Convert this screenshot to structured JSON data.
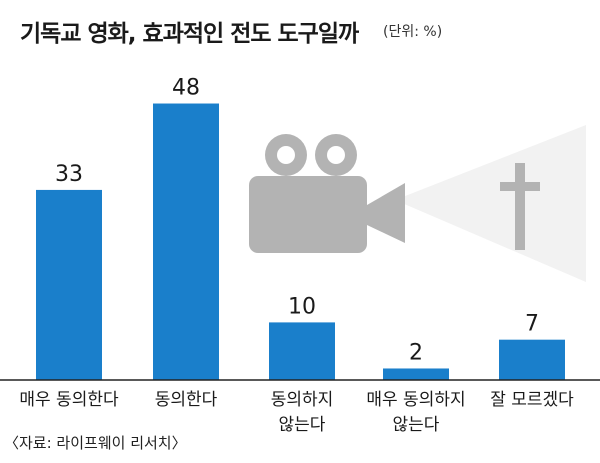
{
  "title": "기독교 영화, 효과적인 전도 도구일까",
  "unit": "(단위: %)",
  "source": "〈자료: 라이프웨이 리서치〉",
  "colors": {
    "bar": "#1a7fcb",
    "icon": "#b3b3b3",
    "beam": "#f2f2f2"
  },
  "icons": [
    "film-camera-icon",
    "cross-icon"
  ],
  "chart_data": {
    "type": "bar",
    "title": "기독교 영화, 효과적인 전도 도구일까",
    "unit": "(단위: %)",
    "categories": [
      "매우 동의한다",
      "동의한다",
      "동의하지 않는다",
      "매우 동의하지 않는다",
      "잘 모르겠다"
    ],
    "category_lines": [
      [
        "매우 동의한다"
      ],
      [
        "동의한다"
      ],
      [
        "동의하지",
        "않는다"
      ],
      [
        "매우 동의하지",
        "않는다"
      ],
      [
        "잘 모르겠다"
      ]
    ],
    "values": [
      33,
      48,
      10,
      2,
      7
    ],
    "value_labels": [
      "33",
      "48",
      "10",
      "2",
      "7"
    ],
    "ylim": [
      0,
      50
    ],
    "grid": false,
    "legend": "none"
  }
}
